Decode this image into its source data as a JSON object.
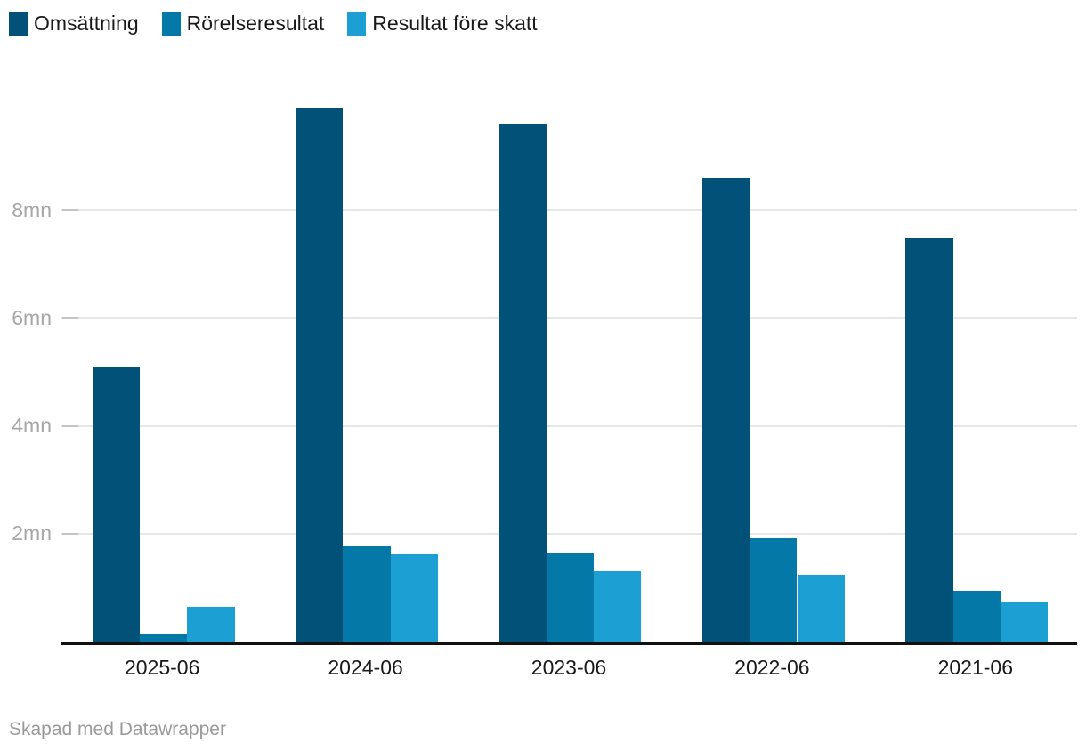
{
  "legend": {
    "items": [
      {
        "label": "Omsättning",
        "color": "#015179"
      },
      {
        "label": "Rörelseresultat",
        "color": "#0478a6"
      },
      {
        "label": "Resultat före skatt",
        "color": "#1ca0d3"
      }
    ]
  },
  "footer": {
    "credit": "Skapad med Datawrapper"
  },
  "colors": {
    "series_dark": "#015179",
    "series_medium": "#0478a6",
    "series_light": "#1ca0d3",
    "axis_line": "#111111",
    "gridline": "#e6e6e6",
    "y_label_text": "#a6a6a6",
    "x_label_text": "#1a1a1a",
    "legend_text": "#1a1a1a",
    "footer_text": "#9a9a9a",
    "background": "#ffffff"
  },
  "chart_data": {
    "type": "bar",
    "title": "",
    "xlabel": "",
    "ylabel": "",
    "unit": "mn",
    "categories": [
      "2025-06",
      "2024-06",
      "2023-06",
      "2022-06",
      "2021-06"
    ],
    "series": [
      {
        "name": "Omsättning",
        "color": "#015179",
        "values": [
          5.1,
          9.9,
          9.6,
          8.6,
          7.5
        ]
      },
      {
        "name": "Rörelseresultat",
        "color": "#0478a6",
        "values": [
          0.14,
          1.76,
          1.63,
          1.91,
          0.94
        ]
      },
      {
        "name": "Resultat före skatt",
        "color": "#1ca0d3",
        "values": [
          0.65,
          1.62,
          1.3,
          1.24,
          0.74
        ]
      }
    ],
    "y_ticks": [
      2,
      4,
      6,
      8
    ],
    "y_tick_labels": [
      "2mn",
      "4mn",
      "6mn",
      "8mn"
    ],
    "ylim": [
      0,
      10.58
    ],
    "grid": "horizontal",
    "legend_position": "top-left"
  }
}
